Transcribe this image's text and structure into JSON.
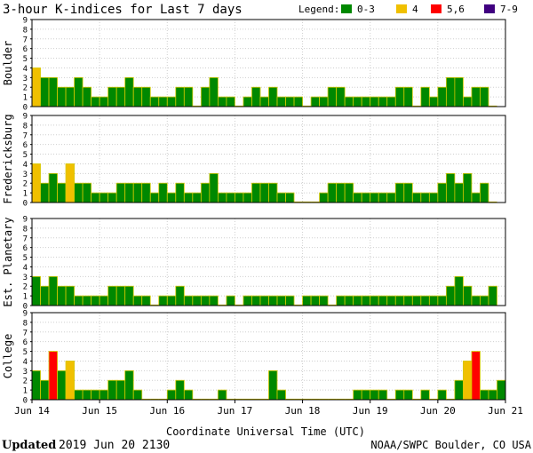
{
  "chart_data": {
    "type": "bar",
    "title": "3-hour K-indices for Last 7 days",
    "legend": {
      "label": "Legend:",
      "position": "top-right",
      "items": [
        {
          "label": "0-3",
          "color": "#008800"
        },
        {
          "label": "4",
          "color": "#f0c000"
        },
        {
          "label": "5,6",
          "color": "#ff0000"
        },
        {
          "label": "7-9",
          "color": "#400080"
        }
      ]
    },
    "xlabel": "Coordinate Universal Time (UTC)",
    "x_ticks": [
      "Jun 14",
      "Jun 15",
      "Jun 16",
      "Jun 17",
      "Jun 18",
      "Jun 19",
      "Jun 20",
      "Jun 21"
    ],
    "ylim": [
      0,
      9
    ],
    "y_ticks": [
      "0",
      "1",
      "2",
      "3",
      "4",
      "5",
      "6",
      "7",
      "8",
      "9"
    ],
    "series": [
      {
        "name": "Boulder",
        "values": [
          4,
          3,
          3,
          2,
          2,
          3,
          2,
          1,
          1,
          2,
          2,
          3,
          2,
          2,
          1,
          1,
          1,
          2,
          2,
          0,
          2,
          3,
          1,
          1,
          0,
          1,
          2,
          1,
          2,
          1,
          1,
          1,
          0,
          1,
          1,
          2,
          2,
          1,
          1,
          1,
          1,
          1,
          1,
          2,
          2,
          0,
          2,
          1,
          2,
          3,
          3,
          1,
          2,
          2,
          0
        ]
      },
      {
        "name": "Fredericksburg",
        "values": [
          4,
          2,
          3,
          2,
          4,
          2,
          2,
          1,
          1,
          1,
          2,
          2,
          2,
          2,
          1,
          2,
          1,
          2,
          1,
          1,
          2,
          3,
          1,
          1,
          1,
          1,
          2,
          2,
          2,
          1,
          1,
          0,
          0,
          0,
          1,
          2,
          2,
          2,
          1,
          1,
          1,
          1,
          1,
          2,
          2,
          1,
          1,
          1,
          2,
          3,
          2,
          3,
          1,
          2,
          0
        ]
      },
      {
        "name": "Est. Planetary",
        "values": [
          3,
          2,
          3,
          2,
          2,
          1,
          1,
          1,
          1,
          2,
          2,
          2,
          1,
          1,
          0,
          1,
          1,
          2,
          1,
          1,
          1,
          1,
          0,
          1,
          0,
          1,
          1,
          1,
          1,
          1,
          1,
          0,
          1,
          1,
          1,
          0,
          1,
          1,
          1,
          1,
          1,
          1,
          1,
          1,
          1,
          1,
          1,
          1,
          1,
          2,
          3,
          2,
          1,
          1,
          2
        ]
      },
      {
        "name": "College",
        "values": [
          3,
          2,
          5,
          3,
          4,
          1,
          1,
          1,
          1,
          2,
          2,
          3,
          1,
          0,
          0,
          0,
          1,
          2,
          1,
          0,
          0,
          0,
          1,
          0,
          0,
          0,
          0,
          0,
          3,
          1,
          0,
          0,
          0,
          0,
          0,
          0,
          0,
          0,
          1,
          1,
          1,
          1,
          0,
          1,
          1,
          0,
          1,
          0,
          1,
          0,
          2,
          4,
          5,
          1,
          1,
          2
        ]
      }
    ]
  },
  "footer": {
    "updated_label": "Updated",
    "updated_value": "2019 Jun 20 2130",
    "credit": "NOAA/SWPC Boulder, CO USA"
  }
}
